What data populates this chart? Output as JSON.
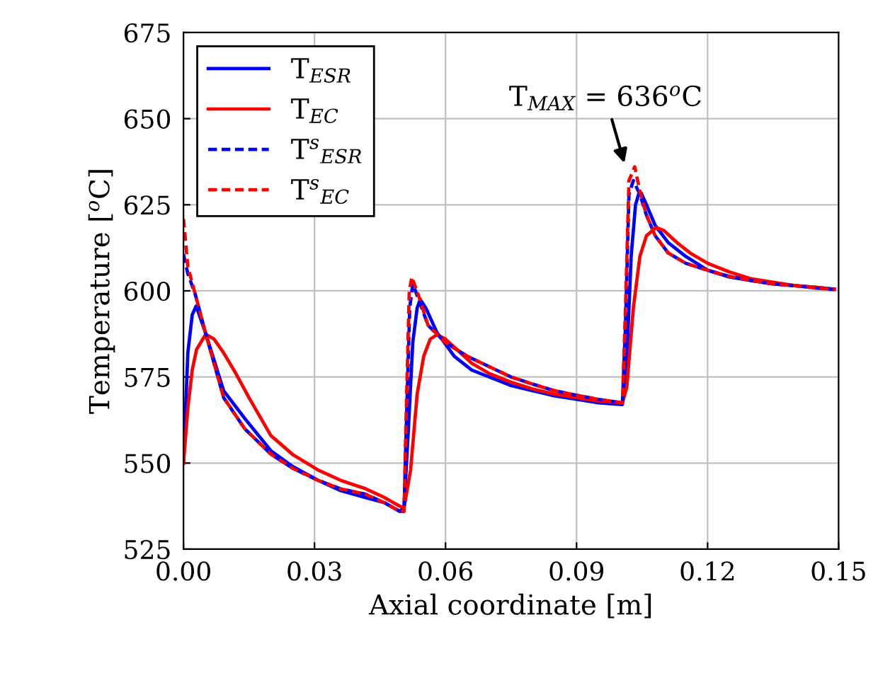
{
  "chart_data": {
    "type": "line",
    "xlabel": "Axial coordinate [m]",
    "ylabel": "Temperature [$^{o}$C]",
    "xlim": [
      0,
      0.15
    ],
    "ylim": [
      525,
      675
    ],
    "xticks": [
      {
        "value": 0,
        "label": "0.00"
      },
      {
        "value": 0.03,
        "label": "0.03"
      },
      {
        "value": 0.06,
        "label": "0.06"
      },
      {
        "value": 0.09,
        "label": "0.09"
      },
      {
        "value": 0.12,
        "label": "0.12"
      },
      {
        "value": 0.15,
        "label": "0.15"
      }
    ],
    "yticks": [
      525,
      550,
      575,
      600,
      625,
      650,
      675
    ],
    "grid": true,
    "legend": "top left",
    "annotations": [
      {
        "text": "T$_{MAX}$ = 636$^{o}$C",
        "x": 0.1012,
        "y": 636
      }
    ],
    "series": [
      {
        "name": "T$_{ESR}$",
        "color": "#0000ff",
        "line_style": "solid",
        "x": [
          0,
          0.001,
          0.002,
          0.0029,
          0.005,
          0.0092,
          0.014,
          0.02,
          0.025,
          0.0308,
          0.036,
          0.0416,
          0.046,
          0.0495,
          0.0505,
          0.0515,
          0.0525,
          0.0535,
          0.0542,
          0.0555,
          0.058,
          0.062,
          0.066,
          0.07,
          0.075,
          0.08,
          0.085,
          0.09,
          0.095,
          0.1005,
          0.1015,
          0.1025,
          0.1035,
          0.1042,
          0.1048,
          0.106,
          0.108,
          0.111,
          0.115,
          0.12,
          0.125,
          0.13,
          0.135,
          0.14,
          0.145,
          0.149
        ],
        "values": [
          550,
          582,
          593,
          595.6,
          588,
          571,
          563,
          553.6,
          549,
          545,
          542,
          540,
          538.5,
          536,
          537,
          560,
          585,
          595,
          597.5,
          595,
          588,
          581,
          577,
          575,
          572.5,
          571,
          569.5,
          568.5,
          567.5,
          567,
          580,
          610,
          625,
          628,
          628.4,
          625,
          619,
          614,
          610,
          606,
          604,
          603,
          602,
          601.5,
          601,
          600.5
        ]
      },
      {
        "name": "T$_{EC}$",
        "color": "#ff0000",
        "line_style": "solid",
        "x": [
          0,
          0.001,
          0.002,
          0.003,
          0.0051,
          0.007,
          0.0092,
          0.012,
          0.015,
          0.02,
          0.025,
          0.0308,
          0.036,
          0.0416,
          0.046,
          0.0495,
          0.0505,
          0.052,
          0.0535,
          0.055,
          0.0565,
          0.0581,
          0.06,
          0.063,
          0.066,
          0.07,
          0.075,
          0.08,
          0.085,
          0.09,
          0.095,
          0.1005,
          0.1015,
          0.103,
          0.1045,
          0.106,
          0.1082,
          0.11,
          0.113,
          0.116,
          0.12,
          0.125,
          0.13,
          0.135,
          0.14,
          0.145,
          0.149
        ],
        "values": [
          550,
          566,
          577,
          583,
          587.4,
          586,
          582,
          576,
          569,
          558,
          552.5,
          548,
          545,
          542.6,
          540,
          537.5,
          537,
          548,
          570,
          581,
          586,
          587.3,
          586,
          582.5,
          579,
          576,
          573.5,
          571.5,
          570,
          569,
          568,
          567.5,
          572,
          595,
          610,
          616,
          618.4,
          617.5,
          614,
          611,
          608,
          605.5,
          603.5,
          602.5,
          601.5,
          601,
          600.5
        ]
      },
      {
        "name": "T$^{s}$$_{ESR}$",
        "color": "#0000ff",
        "line_style": "dashed",
        "x": [
          0,
          0.001,
          0.0027,
          0.005,
          0.0092,
          0.014,
          0.02,
          0.025,
          0.0308,
          0.036,
          0.0416,
          0.046,
          0.0495,
          0.0505,
          0.051,
          0.0518,
          0.0525,
          0.054,
          0.056,
          0.06,
          0.065,
          0.07,
          0.075,
          0.08,
          0.085,
          0.09,
          0.095,
          0.1005,
          0.1012,
          0.102,
          0.103,
          0.1045,
          0.106,
          0.108,
          0.111,
          0.115,
          0.12,
          0.125,
          0.13,
          0.135,
          0.14,
          0.145,
          0.149
        ],
        "values": [
          610.6,
          605,
          599,
          588,
          569,
          560,
          552.6,
          548.5,
          545,
          542.5,
          541,
          538.5,
          536,
          536,
          560,
          595,
          602,
          597,
          590,
          585,
          581,
          578,
          575,
          572.9,
          571,
          569.7,
          568.5,
          567.5,
          590,
          628,
          632,
          628,
          622,
          616,
          611,
          608,
          606,
          604.2,
          603,
          602,
          601.5,
          600.8,
          600.4
        ]
      },
      {
        "name": "T$^{s}$$_{EC}$",
        "color": "#ff0000",
        "line_style": "dashed",
        "x": [
          0,
          0.001,
          0.0027,
          0.005,
          0.0092,
          0.014,
          0.02,
          0.025,
          0.0308,
          0.036,
          0.0416,
          0.046,
          0.0495,
          0.0505,
          0.051,
          0.0517,
          0.0523,
          0.054,
          0.056,
          0.06,
          0.065,
          0.07,
          0.075,
          0.08,
          0.085,
          0.09,
          0.095,
          0.1005,
          0.1012,
          0.102,
          0.1033,
          0.1045,
          0.106,
          0.108,
          0.111,
          0.115,
          0.12,
          0.125,
          0.13,
          0.135,
          0.14,
          0.145,
          0.149
        ],
        "values": [
          620.9,
          607,
          599,
          588,
          569,
          560,
          552.6,
          548.5,
          545,
          542.5,
          541,
          538.5,
          536,
          536,
          565,
          600,
          604,
          598,
          590,
          585,
          581,
          578,
          575,
          572.9,
          571,
          569.7,
          568.5,
          567.5,
          595,
          632,
          636,
          629,
          622,
          616,
          611,
          608,
          606,
          604.2,
          603,
          602,
          601.5,
          600.8,
          600.4
        ]
      }
    ]
  }
}
